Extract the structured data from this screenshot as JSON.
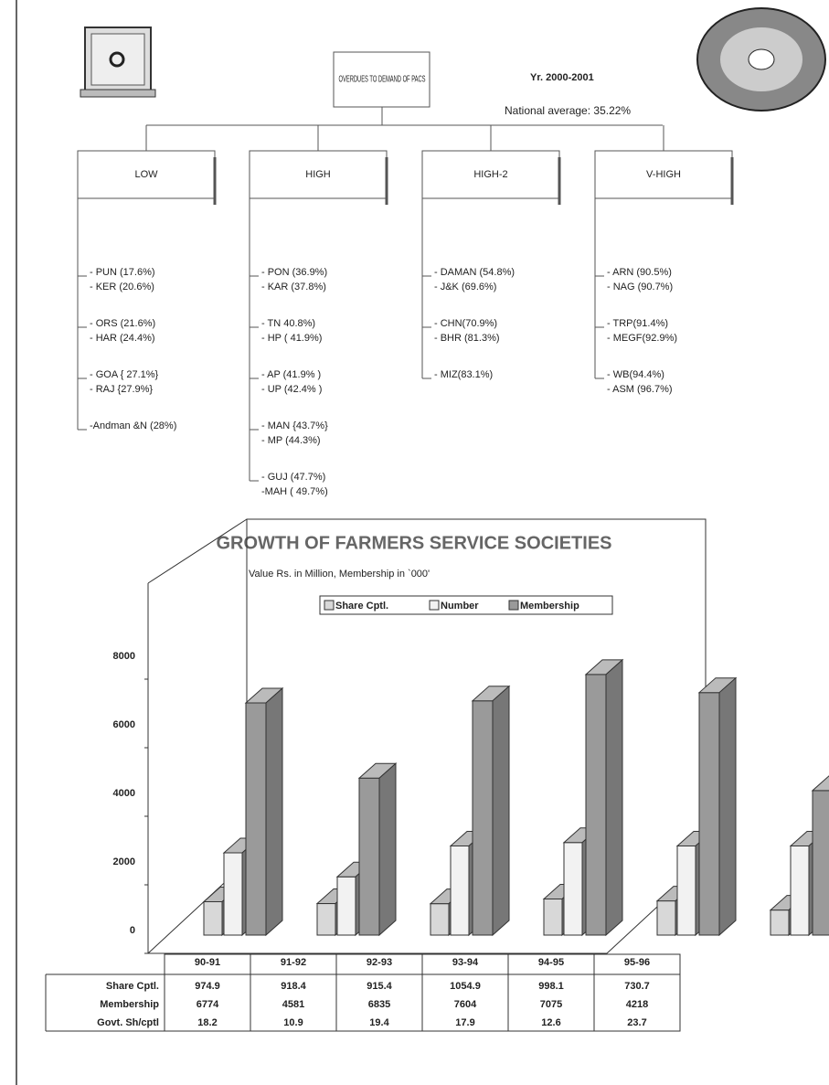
{
  "diagram": {
    "root": "OVERDUES TO DEMAND OF PACS",
    "year": "Yr. 2000-2001",
    "note": "National average: 35.22%",
    "groups": [
      {
        "label": "LOW",
        "items": [
          [
            "- PUN (17.6%)",
            "- KER (20.6%)"
          ],
          [
            "- ORS (21.6%)",
            "- HAR (24.4%)"
          ],
          [
            "- GOA { 27.1%}",
            "- RAJ {27.9%}"
          ],
          [
            "-Andman &N (28%)"
          ]
        ]
      },
      {
        "label": "HIGH",
        "items": [
          [
            "- PON (36.9%)",
            "- KAR (37.8%)"
          ],
          [
            "- TN  40.8%)",
            "- HP ( 41.9%)"
          ],
          [
            "- AP (41.9% )",
            "- UP (42.4% )"
          ],
          [
            "- MAN {43.7%}",
            "- MP (44.3%)"
          ],
          [
            "- GUJ (47.7%)",
            "-MAH ( 49.7%)"
          ]
        ]
      },
      {
        "label": "HIGH-2",
        "items": [
          [
            "- DAMAN (54.8%)",
            "- J&K  (69.6%)"
          ],
          [
            "- CHN(70.9%)",
            "- BHR (81.3%)"
          ],
          [
            "- MIZ(83.1%)"
          ]
        ]
      },
      {
        "label": "V-HIGH",
        "items": [
          [
            "- ARN (90.5%)",
            "- NAG (90.7%)"
          ],
          [
            "- TRP(91.4%)",
            "- MEGF(92.9%)"
          ],
          [
            "- WB(94.4%)",
            "- ASM (96.7%)"
          ]
        ]
      }
    ]
  },
  "chart_data": {
    "type": "bar",
    "title": "GROWTH OF FARMERS SERVICE SOCIETIES",
    "subtitle": "Value Rs. in Million, Membership in `000'",
    "categories": [
      "90-91",
      "91-92",
      "92-93",
      "93-94",
      "94-95",
      "95-96"
    ],
    "series": [
      {
        "name": "Share Cptl.",
        "color": "#d8d8d8",
        "values": [
          974.9,
          918.4,
          915.4,
          1054.9,
          998.1,
          730.7
        ]
      },
      {
        "name": "Number",
        "color": "#f2f2f2",
        "values": [
          2400,
          1700,
          2600,
          2700,
          2600,
          2600
        ]
      },
      {
        "name": "Membership",
        "color": "#9a9a9a",
        "values": [
          6774,
          4581,
          6835,
          7604,
          7075,
          4218
        ]
      }
    ],
    "extra_row": {
      "name": "Govt. Sh/cptl",
      "values": [
        18.2,
        10.9,
        19.4,
        17.9,
        12.6,
        23.7
      ]
    },
    "ylim": [
      0,
      10000
    ],
    "yticks": [
      0,
      2000,
      4000,
      6000,
      8000
    ]
  }
}
